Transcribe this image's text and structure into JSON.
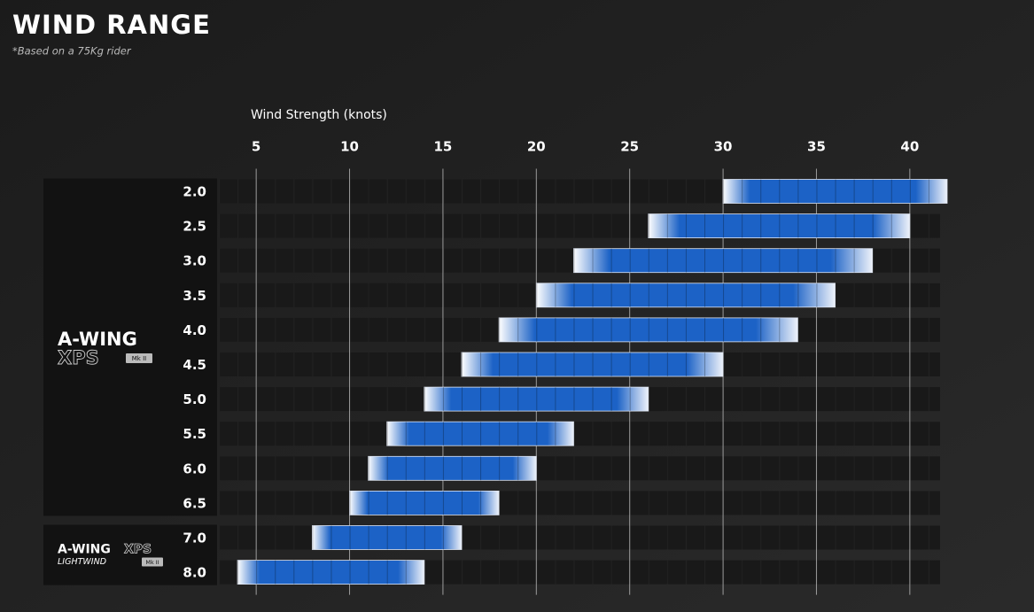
{
  "chart_data": {
    "type": "range_bar",
    "title": "WIND RANGE",
    "subtitle": "*Based on a 75Kg rider",
    "x_label": "Wind Strength (knots)",
    "xlim": [
      3,
      42
    ],
    "xticks": [
      5,
      10,
      15,
      20,
      25,
      30,
      35,
      40
    ],
    "grid": true,
    "color": "#1c62c6",
    "groups": [
      {
        "brand": "A-WING",
        "model": "XPS",
        "badge": "Mk II",
        "categories": [
          "2.0",
          "2.5",
          "3.0",
          "3.5",
          "4.0",
          "4.5",
          "5.0",
          "5.5",
          "6.0",
          "6.5"
        ],
        "low": [
          30,
          26,
          22,
          20,
          18,
          16,
          14,
          12,
          11,
          10
        ],
        "high": [
          42,
          40,
          38,
          36,
          34,
          30,
          26,
          22,
          20,
          18
        ]
      },
      {
        "brand": "A-WING",
        "model": "XPS",
        "subname": "LIGHTWIND",
        "badge": "Mk II",
        "categories": [
          "7.0",
          "8.0"
        ],
        "low": [
          8,
          4
        ],
        "high": [
          16,
          14
        ]
      }
    ]
  }
}
